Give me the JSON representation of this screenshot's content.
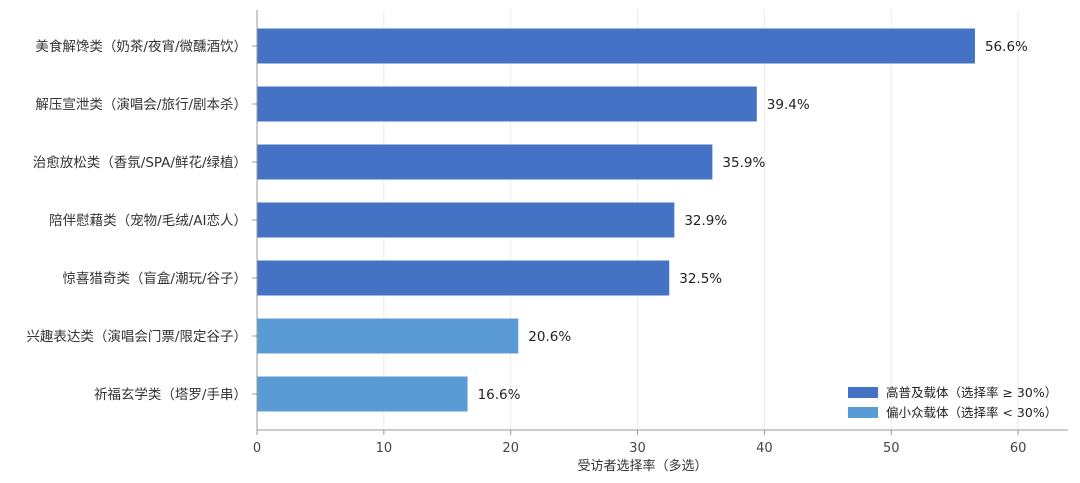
{
  "chart_data": {
    "type": "bar",
    "orientation": "horizontal",
    "categories": [
      "美食解馋类（奶茶/夜宵/微醺酒饮）",
      "解压宣泄类（演唱会/旅行/剧本杀）",
      "治愈放松类（香氛/SPA/鲜花/绿植）",
      "陪伴慰藉类（宠物/毛绒/AI恋人）",
      "惊喜猎奇类（盲盒/潮玩/谷子）",
      "兴趣表达类（演唱会门票/限定谷子）",
      "祈福玄学类（塔罗/手串）"
    ],
    "values": [
      56.6,
      39.4,
      35.9,
      32.9,
      32.5,
      20.6,
      16.6
    ],
    "value_labels": [
      "56.6%",
      "39.4%",
      "35.9%",
      "32.9%",
      "32.5%",
      "20.6%",
      "16.6%"
    ],
    "groups": [
      "high",
      "high",
      "high",
      "high",
      "high",
      "low",
      "low"
    ],
    "xlabel": "受访者选择率（多选）",
    "xlim": [
      0,
      64
    ],
    "xticks": [
      0,
      10,
      20,
      30,
      40,
      50,
      60
    ],
    "grid": true,
    "legend_position": "bottom-right",
    "legend": [
      {
        "key": "high",
        "label": "高普及载体（选择率 ≥ 30%）",
        "color": "#4472C4"
      },
      {
        "key": "low",
        "label": "偏小众载体（选择率 < 30%）",
        "color": "#5B9BD5"
      }
    ],
    "colors": {
      "high": "#4472C4",
      "low": "#5B9BD5",
      "grid": "#ececec",
      "axis": "#999999"
    }
  }
}
